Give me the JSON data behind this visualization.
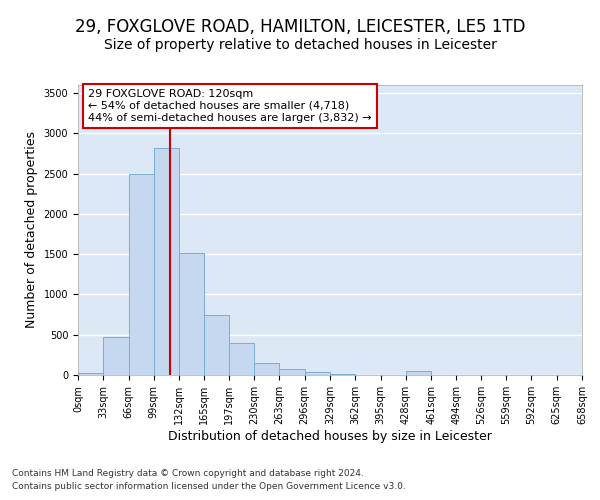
{
  "title_line1": "29, FOXGLOVE ROAD, HAMILTON, LEICESTER, LE5 1TD",
  "title_line2": "Size of property relative to detached houses in Leicester",
  "xlabel": "Distribution of detached houses by size in Leicester",
  "ylabel": "Number of detached properties",
  "bar_color": "#c5d8f0",
  "bar_edge_color": "#7aadd4",
  "background_color": "#dce8f5",
  "grid_color": "#ffffff",
  "annotation_text": "29 FOXGLOVE ROAD: 120sqm\n← 54% of detached houses are smaller (4,718)\n44% of semi-detached houses are larger (3,832) →",
  "annotation_box_color": "#ffffff",
  "annotation_box_edge": "#cc0000",
  "vline_x": 120,
  "vline_color": "#cc0000",
  "bins": [
    0,
    33,
    66,
    99,
    132,
    165,
    197,
    230,
    263,
    296,
    329,
    362,
    395,
    428,
    461,
    494,
    526,
    559,
    592,
    625,
    658
  ],
  "bar_heights": [
    20,
    470,
    2500,
    2820,
    1510,
    740,
    400,
    150,
    80,
    40,
    10,
    0,
    0,
    55,
    0,
    0,
    0,
    0,
    0,
    0
  ],
  "tick_labels": [
    "0sqm",
    "33sqm",
    "66sqm",
    "99sqm",
    "132sqm",
    "165sqm",
    "197sqm",
    "230sqm",
    "263sqm",
    "296sqm",
    "329sqm",
    "362sqm",
    "395sqm",
    "428sqm",
    "461sqm",
    "494sqm",
    "526sqm",
    "559sqm",
    "592sqm",
    "625sqm",
    "658sqm"
  ],
  "ylim": [
    0,
    3600
  ],
  "yticks": [
    0,
    500,
    1000,
    1500,
    2000,
    2500,
    3000,
    3500
  ],
  "footer_line1": "Contains HM Land Registry data © Crown copyright and database right 2024.",
  "footer_line2": "Contains public sector information licensed under the Open Government Licence v3.0.",
  "title_fontsize": 12,
  "subtitle_fontsize": 10,
  "axis_label_fontsize": 9,
  "tick_fontsize": 7,
  "footer_fontsize": 6.5,
  "annot_fontsize": 8
}
